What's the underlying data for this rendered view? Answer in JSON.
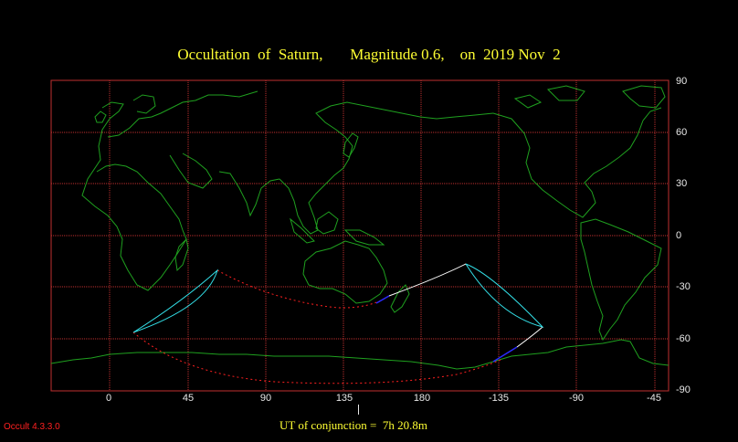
{
  "title": "Occultation  of  Saturn,       Magnitude 0.6,    on  2019 Nov  2",
  "lon_labels": [
    "0",
    "45",
    "90",
    "135",
    "180",
    "-135",
    "-90",
    "-45"
  ],
  "lat_labels": [
    "90",
    "60",
    "30",
    "0",
    "-30",
    "-60",
    "-90"
  ],
  "conjunction_text": "UT of conjunction =  7h 20.8m",
  "version_text": "Occult 4.3.3.0",
  "colors": {
    "background": "#000000",
    "grid": "#c03030",
    "coastline": "#1fa01f",
    "occultation_limit": "#33e0e8",
    "daylight_path": "#ffffff",
    "twilight_path": "#2a2aff",
    "invisible_path": "#ff2020",
    "title_text": "#ffff33",
    "label_text": "#e8e8e8"
  }
}
